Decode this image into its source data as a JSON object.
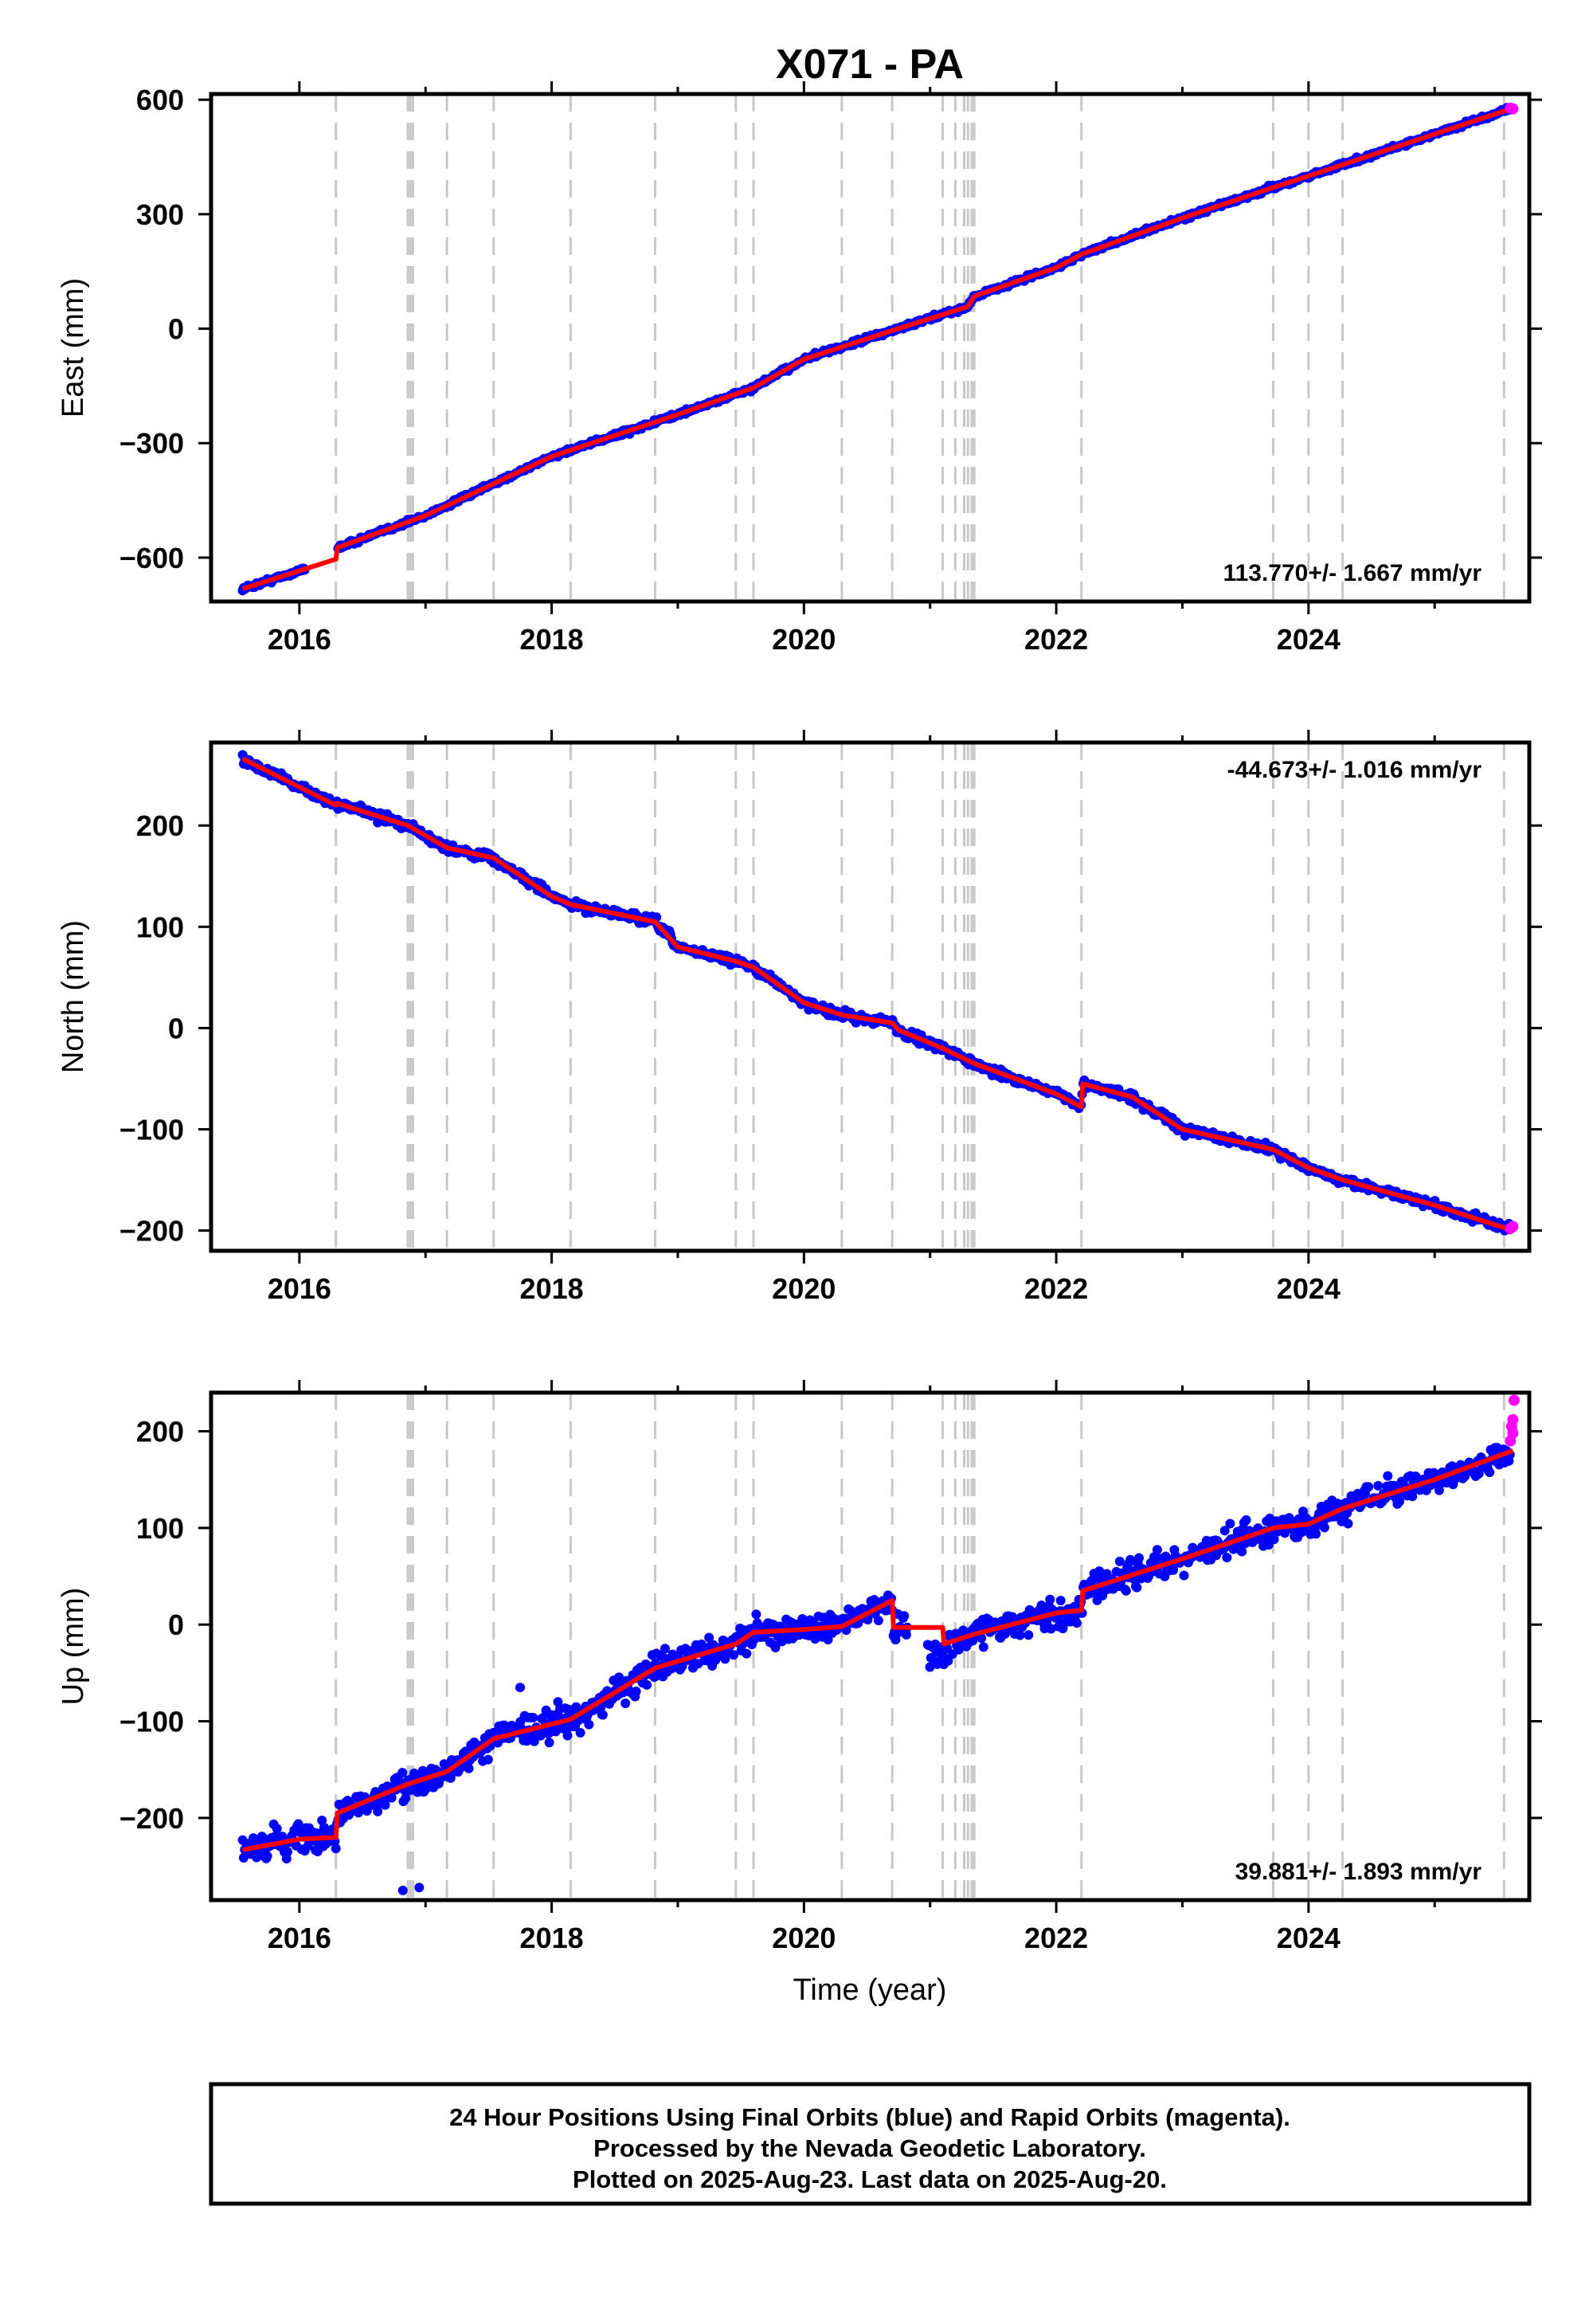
{
  "chart_data": {
    "title": "X071 - PA",
    "type": "scatter",
    "xlabel": "Time (year)",
    "xlim": [
      2015.3,
      2025.75
    ],
    "x_ticks": [
      2016,
      2018,
      2020,
      2022,
      2024
    ],
    "x_tick_labels": [
      "2016",
      "2018",
      "2020",
      "2022",
      "2024"
    ],
    "grid": false,
    "colors": {
      "final": "#0000ff",
      "rapid": "#ff00ff",
      "model": "#ff0000",
      "events": "#c8c8c8"
    },
    "event_lines": [
      2016.29,
      2016.86,
      2016.88,
      2016.9,
      2017.17,
      2017.54,
      2018.15,
      2018.82,
      2019.46,
      2019.6,
      2020.3,
      2020.7,
      2021.1,
      2021.2,
      2021.27,
      2021.3,
      2021.33,
      2021.35,
      2022.2,
      2023.72,
      2024.0,
      2024.27,
      2025.55
    ],
    "panels": [
      {
        "id": "east",
        "ylabel": "East (mm)",
        "ylim": [
          -715,
          615
        ],
        "y_ticks": [
          -600,
          -300,
          0,
          300,
          600
        ],
        "y_tick_labels": [
          "−600",
          "−300",
          "0",
          "300",
          "600"
        ],
        "rate_label": "113.770+/- 1.667 mm/yr",
        "rate_position": "bottom-right",
        "model": [
          [
            2015.55,
            -682
          ],
          [
            2016.29,
            -604
          ],
          [
            2016.3,
            -574
          ],
          [
            2017.0,
            -490
          ],
          [
            2018.0,
            -335
          ],
          [
            2019.0,
            -225
          ],
          [
            2019.6,
            -155
          ],
          [
            2020.0,
            -80
          ],
          [
            2020.7,
            -5
          ],
          [
            2021.3,
            58
          ],
          [
            2021.35,
            85
          ],
          [
            2022.0,
            160
          ],
          [
            2022.2,
            195
          ],
          [
            2023.0,
            290
          ],
          [
            2023.72,
            370
          ],
          [
            2024.0,
            400
          ],
          [
            2025.0,
            510
          ],
          [
            2025.62,
            578
          ]
        ],
        "scatter_noise": 4,
        "final_range": [
          2015.55,
          2025.6
        ],
        "gaps": [
          [
            2016.05,
            2016.3
          ]
        ],
        "rapid": [
          [
            2025.6,
            578
          ],
          [
            2025.62,
            576
          ]
        ]
      },
      {
        "id": "north",
        "ylabel": "North (mm)",
        "ylim": [
          -220,
          282
        ],
        "y_ticks": [
          -200,
          -100,
          0,
          100,
          200
        ],
        "y_tick_labels": [
          "−200",
          "−100",
          "0",
          "100",
          "200"
        ],
        "rate_label": "-44.673+/- 1.016 mm/yr",
        "rate_position": "top-right",
        "model": [
          [
            2015.55,
            266
          ],
          [
            2016.29,
            220
          ],
          [
            2016.3,
            222
          ],
          [
            2016.86,
            200
          ],
          [
            2017.17,
            178
          ],
          [
            2017.54,
            168
          ],
          [
            2018.0,
            130
          ],
          [
            2018.15,
            122
          ],
          [
            2018.82,
            105
          ],
          [
            2019.0,
            80
          ],
          [
            2019.46,
            66
          ],
          [
            2019.6,
            60
          ],
          [
            2020.0,
            25
          ],
          [
            2020.3,
            13
          ],
          [
            2020.7,
            5
          ],
          [
            2020.75,
            -2
          ],
          [
            2021.1,
            -20
          ],
          [
            2021.35,
            -35
          ],
          [
            2022.0,
            -65
          ],
          [
            2022.2,
            -78
          ],
          [
            2022.21,
            -55
          ],
          [
            2022.6,
            -68
          ],
          [
            2023.0,
            -100
          ],
          [
            2023.72,
            -120
          ],
          [
            2024.0,
            -138
          ],
          [
            2024.27,
            -150
          ],
          [
            2025.0,
            -175
          ],
          [
            2025.62,
            -200
          ]
        ],
        "scatter_noise": 3,
        "final_range": [
          2015.55,
          2025.6
        ],
        "gaps": [],
        "rapid": [
          [
            2025.6,
            -198
          ],
          [
            2025.62,
            -196
          ]
        ]
      },
      {
        "id": "up",
        "ylabel": "Up (mm)",
        "ylim": [
          -285,
          240
        ],
        "y_ticks": [
          -200,
          -100,
          0,
          100,
          200
        ],
        "y_tick_labels": [
          "−200",
          "−100",
          "0",
          "100",
          "200"
        ],
        "rate_label": "39.881+/- 1.893 mm/yr",
        "rate_position": "bottom-right",
        "model": [
          [
            2015.55,
            -233
          ],
          [
            2016.0,
            -222
          ],
          [
            2016.29,
            -220
          ],
          [
            2016.3,
            -195
          ],
          [
            2016.86,
            -165
          ],
          [
            2017.17,
            -152
          ],
          [
            2017.54,
            -118
          ],
          [
            2018.15,
            -98
          ],
          [
            2018.82,
            -45
          ],
          [
            2019.0,
            -38
          ],
          [
            2019.46,
            -20
          ],
          [
            2019.6,
            -8
          ],
          [
            2020.0,
            -5
          ],
          [
            2020.3,
            -2
          ],
          [
            2020.7,
            25
          ],
          [
            2020.71,
            -3
          ],
          [
            2021.1,
            -3
          ],
          [
            2021.11,
            -20
          ],
          [
            2021.35,
            -10
          ],
          [
            2022.0,
            12
          ],
          [
            2022.2,
            15
          ],
          [
            2022.21,
            35
          ],
          [
            2023.0,
            68
          ],
          [
            2023.72,
            100
          ],
          [
            2024.0,
            104
          ],
          [
            2024.27,
            120
          ],
          [
            2025.0,
            150
          ],
          [
            2025.62,
            180
          ]
        ],
        "scatter_noise": 10,
        "final_range": [
          2015.55,
          2025.6
        ],
        "gaps": [
          [
            2020.82,
            2020.98
          ]
        ],
        "offsets": [
          [
            2020.98,
            2021.15,
            -28
          ]
        ],
        "outliers": [
          [
            2016.82,
            -275
          ],
          [
            2016.95,
            -272
          ],
          [
            2018.05,
            -80
          ],
          [
            2017.75,
            -65
          ]
        ],
        "rapid": [
          [
            2025.6,
            190
          ],
          [
            2025.61,
            205
          ],
          [
            2025.62,
            212
          ],
          [
            2025.63,
            232
          ],
          [
            2025.62,
            198
          ]
        ]
      }
    ]
  },
  "footer": {
    "line1": "24 Hour Positions Using Final Orbits (blue) and Rapid Orbits (magenta).",
    "line2": "Processed by the Nevada Geodetic Laboratory.",
    "line3": "Plotted on 2025-Aug-23. Last data on 2025-Aug-20."
  }
}
